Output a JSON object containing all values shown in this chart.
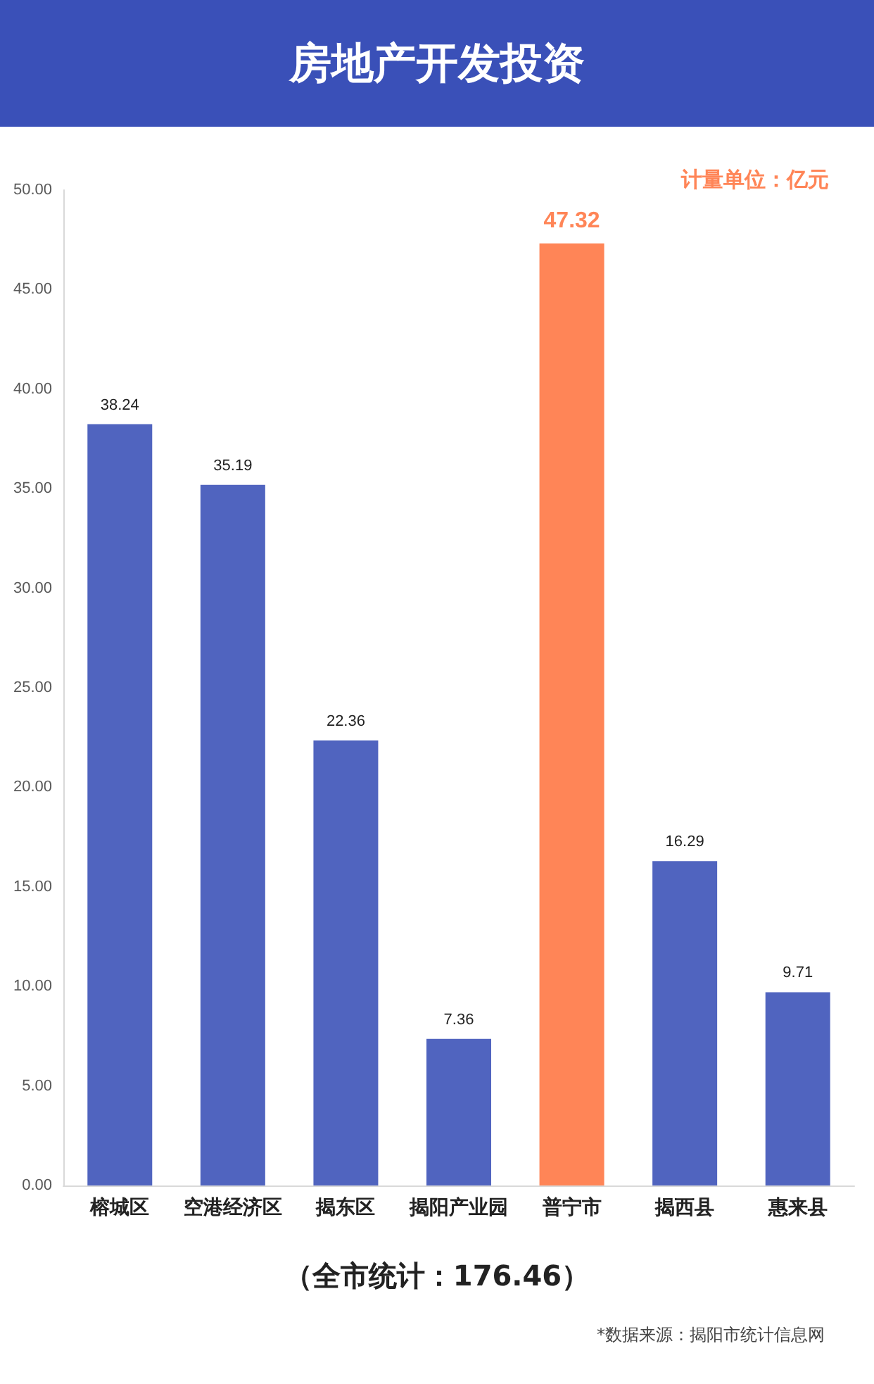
{
  "chart_data": {
    "type": "bar",
    "title": "房地产开发投资",
    "categories": [
      "榕城区",
      "空港经济区",
      "揭东区",
      "揭阳产业园",
      "普宁市",
      "揭西县",
      "惠来县"
    ],
    "values": [
      38.24,
      35.19,
      22.36,
      7.36,
      47.32,
      16.29,
      9.71
    ],
    "colors": [
      "#5064bf",
      "#5064bf",
      "#5064bf",
      "#5064bf",
      "#ff8557",
      "#5064bf",
      "#5064bf"
    ],
    "ylim": [
      0,
      50
    ],
    "yticks": [
      {
        "value": 0,
        "label": "0.00"
      },
      {
        "value": 5,
        "label": "5.00"
      },
      {
        "value": 10,
        "label": "10.00"
      },
      {
        "value": 15,
        "label": "15.00"
      },
      {
        "value": 20,
        "label": "20.00"
      },
      {
        "value": 25,
        "label": "25.00"
      },
      {
        "value": 30,
        "label": "30.00"
      },
      {
        "value": 35,
        "label": "35.00"
      },
      {
        "value": 40,
        "label": "40.00"
      },
      {
        "value": 45,
        "label": "45.00"
      },
      {
        "value": 50,
        "label": "50.00"
      }
    ],
    "grid": false,
    "data_labels": true,
    "annotations": [
      "计量单位：亿元",
      "（全市统计：176.46）",
      "*数据来源：揭阳市统计信息网"
    ]
  }
}
